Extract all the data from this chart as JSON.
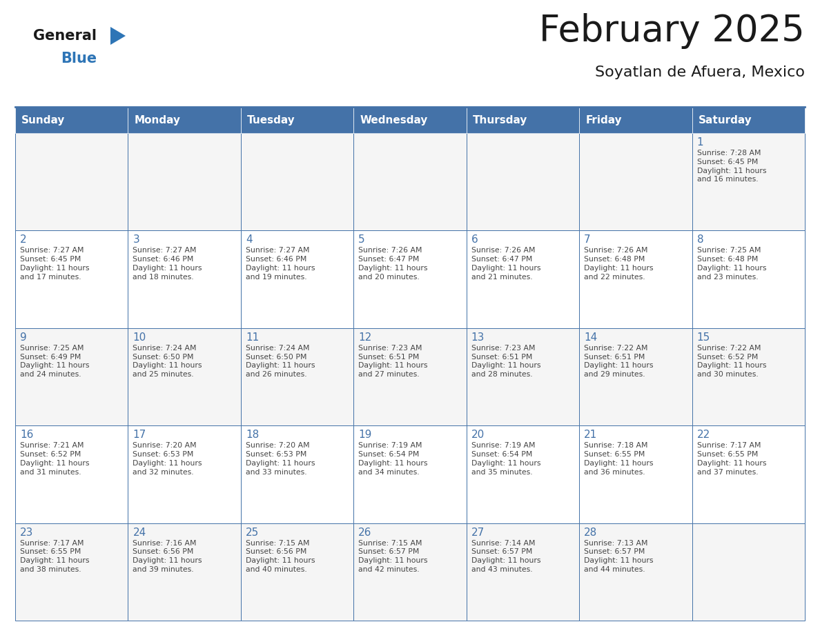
{
  "title": "February 2025",
  "subtitle": "Soyatlan de Afuera, Mexico",
  "days_of_week": [
    "Sunday",
    "Monday",
    "Tuesday",
    "Wednesday",
    "Thursday",
    "Friday",
    "Saturday"
  ],
  "header_bg": "#4472a8",
  "header_text": "#ffffff",
  "cell_bg_even": "#f5f5f5",
  "cell_bg_odd": "#ffffff",
  "border_color": "#4472a8",
  "day_num_color": "#4472a8",
  "text_color": "#444444",
  "title_color": "#1a1a1a",
  "logo_general_color": "#1a1a1a",
  "logo_blue_color": "#2e75b6",
  "calendar_data": [
    [
      null,
      null,
      null,
      null,
      null,
      null,
      {
        "day": 1,
        "sunrise": "7:28 AM",
        "sunset": "6:45 PM",
        "daylight": "11 hours\nand 16 minutes."
      }
    ],
    [
      {
        "day": 2,
        "sunrise": "7:27 AM",
        "sunset": "6:45 PM",
        "daylight": "11 hours\nand 17 minutes."
      },
      {
        "day": 3,
        "sunrise": "7:27 AM",
        "sunset": "6:46 PM",
        "daylight": "11 hours\nand 18 minutes."
      },
      {
        "day": 4,
        "sunrise": "7:27 AM",
        "sunset": "6:46 PM",
        "daylight": "11 hours\nand 19 minutes."
      },
      {
        "day": 5,
        "sunrise": "7:26 AM",
        "sunset": "6:47 PM",
        "daylight": "11 hours\nand 20 minutes."
      },
      {
        "day": 6,
        "sunrise": "7:26 AM",
        "sunset": "6:47 PM",
        "daylight": "11 hours\nand 21 minutes."
      },
      {
        "day": 7,
        "sunrise": "7:26 AM",
        "sunset": "6:48 PM",
        "daylight": "11 hours\nand 22 minutes."
      },
      {
        "day": 8,
        "sunrise": "7:25 AM",
        "sunset": "6:48 PM",
        "daylight": "11 hours\nand 23 minutes."
      }
    ],
    [
      {
        "day": 9,
        "sunrise": "7:25 AM",
        "sunset": "6:49 PM",
        "daylight": "11 hours\nand 24 minutes."
      },
      {
        "day": 10,
        "sunrise": "7:24 AM",
        "sunset": "6:50 PM",
        "daylight": "11 hours\nand 25 minutes."
      },
      {
        "day": 11,
        "sunrise": "7:24 AM",
        "sunset": "6:50 PM",
        "daylight": "11 hours\nand 26 minutes."
      },
      {
        "day": 12,
        "sunrise": "7:23 AM",
        "sunset": "6:51 PM",
        "daylight": "11 hours\nand 27 minutes."
      },
      {
        "day": 13,
        "sunrise": "7:23 AM",
        "sunset": "6:51 PM",
        "daylight": "11 hours\nand 28 minutes."
      },
      {
        "day": 14,
        "sunrise": "7:22 AM",
        "sunset": "6:51 PM",
        "daylight": "11 hours\nand 29 minutes."
      },
      {
        "day": 15,
        "sunrise": "7:22 AM",
        "sunset": "6:52 PM",
        "daylight": "11 hours\nand 30 minutes."
      }
    ],
    [
      {
        "day": 16,
        "sunrise": "7:21 AM",
        "sunset": "6:52 PM",
        "daylight": "11 hours\nand 31 minutes."
      },
      {
        "day": 17,
        "sunrise": "7:20 AM",
        "sunset": "6:53 PM",
        "daylight": "11 hours\nand 32 minutes."
      },
      {
        "day": 18,
        "sunrise": "7:20 AM",
        "sunset": "6:53 PM",
        "daylight": "11 hours\nand 33 minutes."
      },
      {
        "day": 19,
        "sunrise": "7:19 AM",
        "sunset": "6:54 PM",
        "daylight": "11 hours\nand 34 minutes."
      },
      {
        "day": 20,
        "sunrise": "7:19 AM",
        "sunset": "6:54 PM",
        "daylight": "11 hours\nand 35 minutes."
      },
      {
        "day": 21,
        "sunrise": "7:18 AM",
        "sunset": "6:55 PM",
        "daylight": "11 hours\nand 36 minutes."
      },
      {
        "day": 22,
        "sunrise": "7:17 AM",
        "sunset": "6:55 PM",
        "daylight": "11 hours\nand 37 minutes."
      }
    ],
    [
      {
        "day": 23,
        "sunrise": "7:17 AM",
        "sunset": "6:55 PM",
        "daylight": "11 hours\nand 38 minutes."
      },
      {
        "day": 24,
        "sunrise": "7:16 AM",
        "sunset": "6:56 PM",
        "daylight": "11 hours\nand 39 minutes."
      },
      {
        "day": 25,
        "sunrise": "7:15 AM",
        "sunset": "6:56 PM",
        "daylight": "11 hours\nand 40 minutes."
      },
      {
        "day": 26,
        "sunrise": "7:15 AM",
        "sunset": "6:57 PM",
        "daylight": "11 hours\nand 42 minutes."
      },
      {
        "day": 27,
        "sunrise": "7:14 AM",
        "sunset": "6:57 PM",
        "daylight": "11 hours\nand 43 minutes."
      },
      {
        "day": 28,
        "sunrise": "7:13 AM",
        "sunset": "6:57 PM",
        "daylight": "11 hours\nand 44 minutes."
      },
      null
    ]
  ],
  "fig_width": 11.88,
  "fig_height": 9.18,
  "dpi": 100
}
